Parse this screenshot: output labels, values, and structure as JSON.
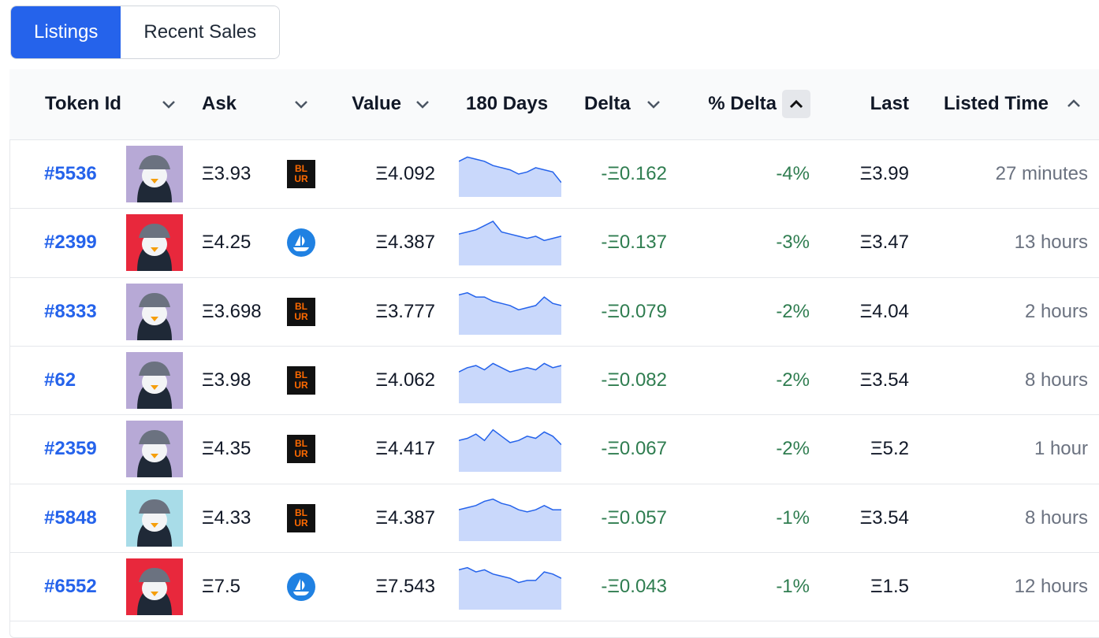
{
  "tabs": [
    "Listings",
    "Recent Sales"
  ],
  "active_tab": 0,
  "table": {
    "headers": [
      "Token Id",
      "Ask",
      "Value",
      "180 Days",
      "Delta",
      "% Delta",
      "Last",
      "Listed Time"
    ],
    "rows": [
      {
        "token": "#5536",
        "avatar_color": "#b7a9d6",
        "ask": "Ξ3.93",
        "market": "BLUR",
        "value": "Ξ4.092",
        "spark": [
          8,
          9,
          8.5,
          8,
          7,
          6.5,
          6,
          5,
          5.5,
          6.5,
          6,
          5.5,
          3
        ],
        "delta": "-Ξ0.162",
        "pct_delta": "-4%",
        "last": "Ξ3.99",
        "listed": "27 minutes"
      },
      {
        "token": "#2399",
        "avatar_color": "#e8283c",
        "ask": "Ξ4.25",
        "market": null,
        "value": "Ξ4.387",
        "spark": [
          7,
          7.5,
          8,
          9,
          10,
          7.5,
          7,
          6.5,
          6,
          6.5,
          5.5,
          6,
          6.5
        ],
        "delta": "-Ξ0.137",
        "pct_delta": "-3%",
        "last": "Ξ3.47",
        "listed": "13 hours"
      },
      {
        "token": "#8333",
        "avatar_color": "#b7a9d6",
        "ask": "Ξ3.698",
        "market": "BLUR",
        "value": "Ξ3.777",
        "spark": [
          9,
          9.5,
          8.5,
          8.5,
          7.5,
          7,
          6.5,
          5.5,
          6,
          6.5,
          8.5,
          7,
          6.5
        ],
        "delta": "-Ξ0.079",
        "pct_delta": "-2%",
        "last": "Ξ4.04",
        "listed": "2 hours"
      },
      {
        "token": "#62",
        "avatar_color": "#b7a9d6",
        "ask": "Ξ3.98",
        "market": "BLUR",
        "value": "Ξ4.062",
        "spark": [
          7,
          8,
          8.5,
          7.5,
          9,
          8,
          7,
          7.5,
          8,
          7.5,
          9,
          8,
          8.5
        ],
        "delta": "-Ξ0.082",
        "pct_delta": "-2%",
        "last": "Ξ3.54",
        "listed": "8 hours"
      },
      {
        "token": "#2359",
        "avatar_color": "#b7a9d6",
        "ask": "Ξ4.35",
        "market": "BLUR",
        "value": "Ξ4.417",
        "spark": [
          7,
          7.5,
          8.5,
          7,
          9.5,
          8,
          6.5,
          7,
          8,
          7.5,
          9,
          8,
          6
        ],
        "delta": "-Ξ0.067",
        "pct_delta": "-2%",
        "last": "Ξ5.2",
        "listed": "1 hour"
      },
      {
        "token": "#5848",
        "avatar_color": "#a8dce8",
        "ask": "Ξ4.33",
        "market": "BLUR",
        "value": "Ξ4.387",
        "spark": [
          7,
          7.5,
          8,
          9,
          9.5,
          8.5,
          8,
          7,
          6.5,
          7,
          8,
          7,
          7
        ],
        "delta": "-Ξ0.057",
        "pct_delta": "-1%",
        "last": "Ξ3.54",
        "listed": "8 hours"
      },
      {
        "token": "#6552",
        "avatar_color": "#e8283c",
        "ask": "Ξ7.5",
        "market": null,
        "value": "Ξ7.543",
        "spark": [
          9,
          9.5,
          8.5,
          9,
          8,
          7.5,
          7,
          6,
          6.5,
          6.5,
          8.5,
          8,
          7
        ],
        "delta": "-Ξ0.043",
        "pct_delta": "-1%",
        "last": "Ξ1.5",
        "listed": "12 hours"
      }
    ]
  }
}
